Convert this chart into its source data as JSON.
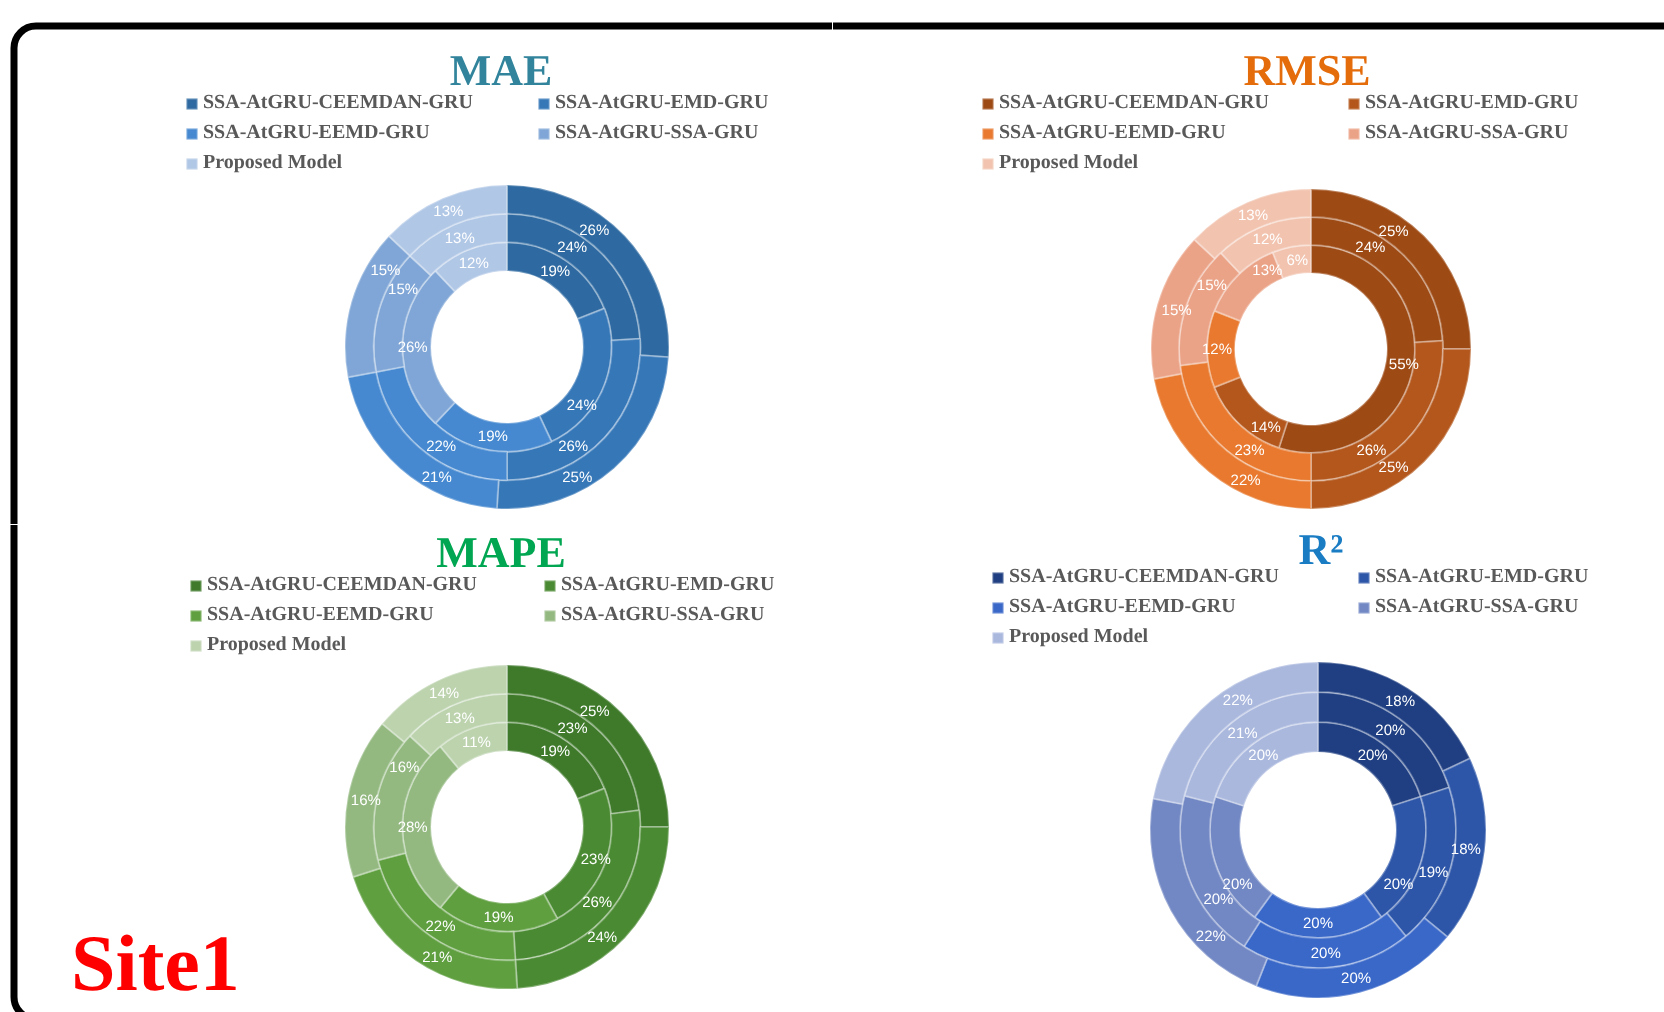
{
  "chart_data": [
    {
      "type": "donut",
      "title": "MAE",
      "categories": [
        "SSA-AtGRU-CEEMDAN-GRU",
        "SSA-AtGRU-EMD-GRU",
        "SSA-AtGRU-EEMD-GRU",
        "SSA-AtGRU-SSA-GRU",
        "Proposed Model"
      ],
      "colors": [
        "#2e6aa1",
        "#3677b8",
        "#4689d0",
        "#7fa6d6",
        "#b0c7e6"
      ],
      "legend": "top",
      "series": [
        {
          "values": [
            19,
            24,
            19,
            26,
            12
          ],
          "value_labels": [
            "19%",
            "24%",
            "19%",
            "26%",
            "12%"
          ]
        },
        {
          "values": [
            24,
            26,
            22,
            15,
            13
          ],
          "value_labels": [
            "24%",
            "26%",
            "22%",
            "15%",
            "13%"
          ]
        },
        {
          "values": [
            26,
            25,
            21,
            15,
            13
          ],
          "value_labels": [
            "26%",
            "25%",
            "21%",
            "15%",
            "13%"
          ]
        }
      ]
    },
    {
      "type": "donut",
      "title": "RMSE",
      "categories": [
        "SSA-AtGRU-CEEMDAN-GRU",
        "SSA-AtGRU-EMD-GRU",
        "SSA-AtGRU-EEMD-GRU",
        "SSA-AtGRU-SSA-GRU",
        "Proposed Model"
      ],
      "colors": [
        "#9e4a14",
        "#b3571c",
        "#e8792e",
        "#eba387",
        "#f2c4b0"
      ],
      "legend": "top",
      "series": [
        {
          "values": [
            55,
            14,
            12,
            13,
            6
          ],
          "value_labels": [
            "55%",
            "14%",
            "12%",
            "13%",
            "6%"
          ]
        },
        {
          "values": [
            24,
            26,
            23,
            15,
            12
          ],
          "value_labels": [
            "24%",
            "26%",
            "23%",
            "15%",
            "12%"
          ]
        },
        {
          "values": [
            25,
            25,
            22,
            15,
            13
          ],
          "value_labels": [
            "25%",
            "25%",
            "22%",
            "15%",
            "13%"
          ]
        }
      ]
    },
    {
      "type": "donut",
      "title": "MAPE",
      "categories": [
        "SSA-AtGRU-CEEMDAN-GRU",
        "SSA-AtGRU-EMD-GRU",
        "SSA-AtGRU-EEMD-GRU",
        "SSA-AtGRU-SSA-GRU",
        "Proposed Model"
      ],
      "colors": [
        "#3e7a2a",
        "#4a8a32",
        "#5f9f40",
        "#93b980",
        "#bcd3ae"
      ],
      "legend": "top",
      "annotations": [
        "Site1"
      ],
      "series": [
        {
          "values": [
            19,
            23,
            19,
            28,
            11
          ],
          "value_labels": [
            "19%",
            "23%",
            "19%",
            "28%",
            "11%"
          ]
        },
        {
          "values": [
            23,
            26,
            22,
            16,
            13
          ],
          "value_labels": [
            "23%",
            "26%",
            "22%",
            "16%",
            "13%"
          ]
        },
        {
          "values": [
            25,
            24,
            21,
            16,
            14
          ],
          "value_labels": [
            "25%",
            "24%",
            "21%",
            "16%",
            "14%"
          ]
        }
      ]
    },
    {
      "type": "donut",
      "title": "R²",
      "categories": [
        "SSA-AtGRU-CEEMDAN-GRU",
        "SSA-AtGRU-EMD-GRU",
        "SSA-AtGRU-EEMD-GRU",
        "SSA-AtGRU-SSA-GRU",
        "Proposed Model"
      ],
      "colors": [
        "#1f3f82",
        "#2d56a8",
        "#3a68c8",
        "#7288c4",
        "#aab8de"
      ],
      "legend": "top",
      "series": [
        {
          "values": [
            20,
            20,
            20,
            20,
            20
          ],
          "value_labels": [
            "20%",
            "20%",
            "20%",
            "20%",
            "20%"
          ]
        },
        {
          "values": [
            20,
            19,
            20,
            20,
            21
          ],
          "value_labels": [
            "20%",
            "19%",
            "20%",
            "20%",
            "21%"
          ]
        },
        {
          "values": [
            18,
            18,
            20,
            22,
            22
          ],
          "value_labels": [
            "18%",
            "18%",
            "20%",
            "22%",
            "22%"
          ]
        }
      ]
    }
  ]
}
